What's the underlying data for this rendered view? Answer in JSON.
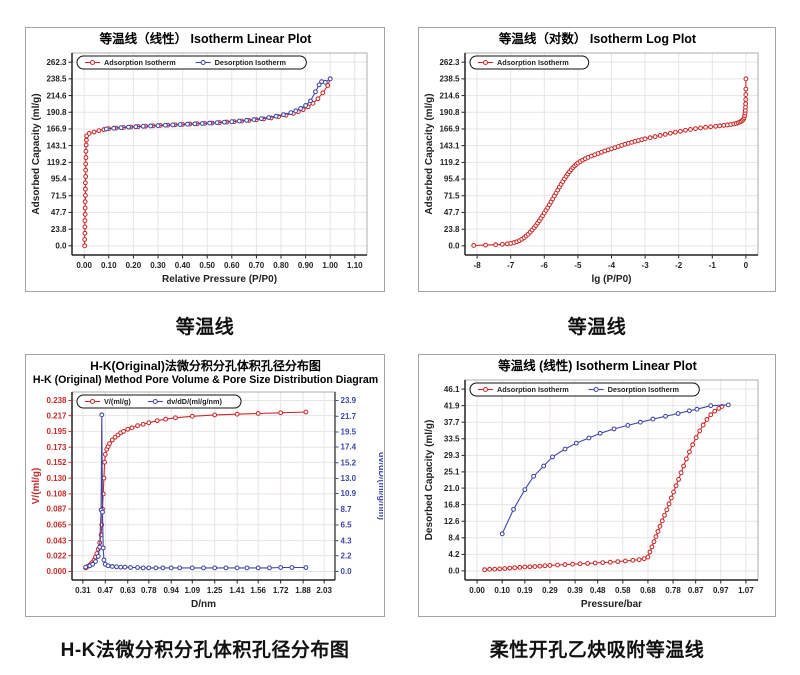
{
  "captions": [
    "等温线",
    "等温线",
    "H-K法微分积分孔体积孔径分布图",
    "柔性开孔乙炔吸附等温线"
  ],
  "colors": {
    "adsorption_red": "#c92b2b",
    "desorption_blue": "#3f46a8",
    "grid": "#eae3e3",
    "frame": "#999999",
    "axis": "#222222",
    "text": "#111111",
    "box_border": "#a3a3a3"
  },
  "chart_data": [
    {
      "type": "line",
      "title": "等温线（线性） Isotherm Linear Plot",
      "title2": null,
      "xlabel": "Relative Pressure (P/P0)",
      "ylabel": "Adsorbed Capacity (ml/g)",
      "x_ticks": [
        0.0,
        0.1,
        0.2,
        0.3,
        0.4,
        0.5,
        0.6,
        0.7,
        0.8,
        0.9,
        1.0,
        1.1
      ],
      "x_tick_labels": [
        "0.00",
        "0.10",
        "0.20",
        "0.30",
        "0.40",
        "0.50",
        "0.60",
        "0.70",
        "0.80",
        "0.90",
        "1.00",
        "1.10"
      ],
      "y_ticks": [
        0.0,
        23.8,
        47.7,
        71.5,
        95.4,
        119.2,
        143.1,
        166.9,
        190.8,
        214.6,
        238.5,
        262.3
      ],
      "y_tick_labels": [
        "0.0",
        "23.8",
        "47.7",
        "71.5",
        "95.4",
        "119.2",
        "143.1",
        "166.9",
        "190.8",
        "214.6",
        "238.5",
        "262.3"
      ],
      "legend": [
        {
          "name": "Adsorption Isotherm",
          "color": "#c92b2b"
        },
        {
          "name": "Desorption Isotherm",
          "color": "#3f46a8"
        }
      ],
      "series": [
        {
          "name": "Adsorption Isotherm",
          "color": "#c92b2b",
          "axis": "y",
          "x": [
            0.002,
            0.002,
            0.003,
            0.003,
            0.003,
            0.004,
            0.004,
            0.004,
            0.005,
            0.005,
            0.005,
            0.006,
            0.006,
            0.006,
            0.007,
            0.007,
            0.008,
            0.009,
            0.01,
            0.02,
            0.04,
            0.06,
            0.08,
            0.1,
            0.13,
            0.16,
            0.19,
            0.22,
            0.25,
            0.28,
            0.31,
            0.34,
            0.37,
            0.4,
            0.43,
            0.46,
            0.49,
            0.52,
            0.55,
            0.58,
            0.61,
            0.64,
            0.67,
            0.7,
            0.73,
            0.76,
            0.79,
            0.82,
            0.85,
            0.87,
            0.89,
            0.91,
            0.93,
            0.95,
            0.97,
            0.99,
            1.0
          ],
          "y": [
            0,
            9,
            18,
            27,
            36,
            45,
            54,
            63,
            72,
            81,
            90,
            99,
            108,
            117,
            126,
            135,
            144,
            151,
            157,
            160.5,
            162.5,
            164.5,
            166,
            167.3,
            168.2,
            169,
            169.7,
            170.3,
            170.9,
            171.4,
            171.9,
            172.4,
            172.9,
            173.4,
            173.9,
            174.4,
            174.9,
            175.4,
            176,
            176.7,
            177.4,
            178.2,
            179.1,
            180.1,
            181.3,
            182.7,
            184.4,
            186.5,
            189.2,
            191.5,
            194.5,
            198.5,
            203.5,
            210,
            218.5,
            229,
            238.5
          ]
        },
        {
          "name": "Desorption Isotherm",
          "color": "#3f46a8",
          "axis": "y",
          "x": [
            0.09,
            0.12,
            0.15,
            0.18,
            0.21,
            0.24,
            0.27,
            0.3,
            0.33,
            0.36,
            0.39,
            0.42,
            0.45,
            0.48,
            0.51,
            0.54,
            0.57,
            0.6,
            0.63,
            0.66,
            0.69,
            0.72,
            0.75,
            0.78,
            0.81,
            0.84,
            0.86,
            0.88,
            0.9,
            0.92,
            0.94,
            0.955,
            0.965,
            0.98,
            1.0
          ],
          "y": [
            167,
            168,
            168.8,
            169.5,
            170.1,
            170.7,
            171.2,
            171.7,
            172.2,
            172.7,
            173.2,
            173.7,
            174.2,
            174.7,
            175.3,
            175.9,
            176.6,
            177.4,
            178.2,
            179.2,
            180.3,
            181.6,
            183.2,
            185.1,
            187.4,
            190.2,
            192.8,
            196.2,
            200.5,
            207,
            220,
            230,
            234.5,
            233.5,
            238.5
          ]
        }
      ]
    },
    {
      "type": "line",
      "title": "等温线（对数） Isotherm Log Plot",
      "title2": null,
      "xlabel": "lg (P/P0)",
      "ylabel": "Adsorbed Capacity (ml/g)",
      "x_ticks": [
        -8,
        -7,
        -6,
        -5,
        -4,
        -3,
        -2,
        -1,
        0
      ],
      "x_tick_labels": [
        "-8",
        "-7",
        "-6",
        "-5",
        "-4",
        "-3",
        "-2",
        "-1",
        "0"
      ],
      "y_ticks": [
        0.0,
        23.8,
        47.7,
        71.5,
        95.4,
        119.2,
        143.1,
        166.9,
        190.8,
        214.6,
        238.5,
        262.3
      ],
      "y_tick_labels": [
        "0.0",
        "23.8",
        "47.7",
        "71.5",
        "95.4",
        "119.2",
        "143.1",
        "166.9",
        "190.8",
        "214.6",
        "238.5",
        "262.3"
      ],
      "legend": [
        {
          "name": "Adsorption Isotherm",
          "color": "#c92b2b"
        }
      ],
      "series": [
        {
          "name": "Adsorption Isotherm",
          "color": "#c92b2b",
          "axis": "y",
          "x": [
            -8.1,
            -7.75,
            -7.45,
            -7.25,
            -7.1,
            -7.0,
            -6.9,
            -6.82,
            -6.74,
            -6.67,
            -6.6,
            -6.54,
            -6.48,
            -6.42,
            -6.36,
            -6.3,
            -6.25,
            -6.2,
            -6.15,
            -6.1,
            -6.05,
            -6.0,
            -5.95,
            -5.9,
            -5.85,
            -5.8,
            -5.75,
            -5.7,
            -5.65,
            -5.6,
            -5.55,
            -5.5,
            -5.45,
            -5.4,
            -5.35,
            -5.3,
            -5.25,
            -5.2,
            -5.15,
            -5.1,
            -5.05,
            -5.0,
            -4.93,
            -4.86,
            -4.78,
            -4.7,
            -4.6,
            -4.5,
            -4.4,
            -4.3,
            -4.2,
            -4.1,
            -4.0,
            -3.9,
            -3.8,
            -3.7,
            -3.6,
            -3.5,
            -3.4,
            -3.3,
            -3.2,
            -3.1,
            -3.0,
            -2.85,
            -2.7,
            -2.55,
            -2.4,
            -2.25,
            -2.1,
            -1.95,
            -1.8,
            -1.65,
            -1.5,
            -1.35,
            -1.2,
            -1.05,
            -0.9,
            -0.78,
            -0.66,
            -0.55,
            -0.45,
            -0.36,
            -0.29,
            -0.23,
            -0.18,
            -0.14,
            -0.1,
            -0.07,
            -0.05,
            -0.035,
            -0.025,
            -0.018,
            -0.012,
            -0.008,
            -0.005,
            -0.003,
            -0.001,
            0
          ],
          "y": [
            0.5,
            1,
            1.6,
            2.2,
            2.8,
            3.5,
            4.6,
            5.8,
            7.4,
            9.3,
            11.6,
            14,
            16.6,
            19.5,
            22.6,
            26,
            29,
            32.4,
            35.8,
            39.4,
            43,
            46.8,
            50.6,
            54.6,
            58.6,
            62.8,
            67,
            71.2,
            75.4,
            79.6,
            83.8,
            87.8,
            91.8,
            95.6,
            99.2,
            102.6,
            105.8,
            108.8,
            111.6,
            114,
            116.2,
            118.2,
            120.4,
            122.4,
            124.4,
            126.2,
            128.2,
            130,
            131.8,
            133.6,
            135.4,
            137,
            138.6,
            140.2,
            141.8,
            143.4,
            145,
            146.4,
            147.8,
            149.2,
            150.4,
            151.6,
            152.8,
            154.4,
            156,
            157.6,
            159.2,
            160.8,
            162.2,
            163.6,
            165,
            166.2,
            167.4,
            168.4,
            169.2,
            170,
            170.8,
            171.4,
            172,
            172.6,
            173.3,
            174,
            174.8,
            175.7,
            176.7,
            177.8,
            179.2,
            181,
            183.2,
            186,
            189.5,
            193.5,
            198,
            203,
            209,
            216,
            224,
            238.5
          ]
        }
      ]
    },
    {
      "type": "line",
      "title": "H-K(Original)法微分积分孔体积孔径分布图",
      "title2": "H-K (Original) Method Pore Volume & Pore Size Distribution Diagram",
      "xlabel": "D/nm",
      "ylabel": "V/(ml/g)",
      "ylabel_color": "#c92b2b",
      "y2label": "dv/dD/(ml/g/nm)",
      "y2label_color": "#3f46a8",
      "x_ticks": [
        0.31,
        0.47,
        0.63,
        0.78,
        0.94,
        1.09,
        1.25,
        1.41,
        1.56,
        1.72,
        1.88,
        2.03
      ],
      "x_tick_labels": [
        "0.31",
        "0.47",
        "0.63",
        "0.78",
        "0.94",
        "1.09",
        "1.25",
        "1.41",
        "1.56",
        "1.72",
        "1.88",
        "2.03"
      ],
      "y_ticks": [
        0.0,
        0.022,
        0.043,
        0.065,
        0.087,
        0.108,
        0.13,
        0.152,
        0.173,
        0.195,
        0.217,
        0.238
      ],
      "y_tick_labels": [
        "0.000",
        "0.022",
        "0.043",
        "0.065",
        "0.087",
        "0.108",
        "0.130",
        "0.152",
        "0.173",
        "0.195",
        "0.217",
        "0.238"
      ],
      "y_tick_color": "#c92b2b",
      "y2_ticks": [
        0.0,
        2.2,
        4.3,
        6.5,
        8.7,
        10.9,
        13.0,
        15.2,
        17.4,
        19.5,
        21.7,
        23.9
      ],
      "y2_tick_labels": [
        "0.0",
        "2.2",
        "4.3",
        "6.5",
        "8.7",
        "10.9",
        "13.0",
        "15.2",
        "17.4",
        "19.5",
        "21.7",
        "23.9"
      ],
      "y2_tick_color": "#3f46a8",
      "legend": [
        {
          "name": "V/(ml/g)",
          "color": "#c92b2b"
        },
        {
          "name": "dv/dD/(ml/g/nm)",
          "color": "#3f46a8"
        }
      ],
      "series": [
        {
          "name": "V/(ml/g)",
          "color": "#c92b2b",
          "axis": "y",
          "x": [
            0.33,
            0.345,
            0.36,
            0.37,
            0.38,
            0.39,
            0.4,
            0.41,
            0.42,
            0.43,
            0.44,
            0.445,
            0.45,
            0.455,
            0.46,
            0.465,
            0.47,
            0.48,
            0.49,
            0.5,
            0.52,
            0.54,
            0.56,
            0.58,
            0.6,
            0.63,
            0.66,
            0.7,
            0.74,
            0.78,
            0.84,
            0.9,
            0.97,
            1.09,
            1.25,
            1.41,
            1.56,
            1.72,
            1.9
          ],
          "y": [
            0.005,
            0.007,
            0.009,
            0.011,
            0.013,
            0.016,
            0.02,
            0.025,
            0.031,
            0.04,
            0.051,
            0.065,
            0.087,
            0.108,
            0.13,
            0.152,
            0.163,
            0.17,
            0.174,
            0.178,
            0.183,
            0.187,
            0.19,
            0.193,
            0.195,
            0.198,
            0.2,
            0.203,
            0.205,
            0.207,
            0.21,
            0.212,
            0.214,
            0.216,
            0.218,
            0.219,
            0.22,
            0.221,
            0.222
          ]
        },
        {
          "name": "dv/dD/(ml/g/nm)",
          "color": "#3f46a8",
          "axis": "y2",
          "x": [
            0.33,
            0.36,
            0.38,
            0.4,
            0.42,
            0.43,
            0.44,
            0.445,
            0.45,
            0.455,
            0.46,
            0.47,
            0.49,
            0.52,
            0.55,
            0.58,
            0.61,
            0.65,
            0.7,
            0.74,
            0.78,
            0.83,
            0.88,
            0.94,
            1.0,
            1.09,
            1.17,
            1.25,
            1.33,
            1.41,
            1.48,
            1.56,
            1.64,
            1.72,
            1.8,
            1.9
          ],
          "y": [
            0.6,
            0.8,
            1.0,
            1.4,
            2.1,
            3.4,
            8.6,
            21.9,
            8.3,
            3.3,
            1.6,
            1.0,
            0.8,
            0.7,
            0.65,
            0.6,
            0.6,
            0.55,
            0.55,
            0.5,
            0.5,
            0.5,
            0.5,
            0.5,
            0.5,
            0.5,
            0.5,
            0.5,
            0.5,
            0.5,
            0.5,
            0.5,
            0.5,
            0.55,
            0.55,
            0.55
          ]
        }
      ]
    },
    {
      "type": "line",
      "title": "等温线 (线性)  Isotherm Linear Plot",
      "title2": null,
      "xlabel": "Pressure/bar",
      "ylabel": "Desorbed Capacity (ml/g)",
      "x_ticks": [
        0.0,
        0.1,
        0.19,
        0.29,
        0.39,
        0.48,
        0.58,
        0.68,
        0.78,
        0.87,
        0.97,
        1.07
      ],
      "x_tick_labels": [
        "0.00",
        "0.10",
        "0.19",
        "0.29",
        "0.39",
        "0.48",
        "0.58",
        "0.68",
        "0.78",
        "0.87",
        "0.97",
        "1.07"
      ],
      "y_ticks": [
        0.0,
        4.2,
        8.4,
        12.6,
        16.8,
        21.0,
        25.1,
        29.3,
        33.5,
        37.7,
        41.9,
        46.1
      ],
      "y_tick_labels": [
        "0.0",
        "4.2",
        "8.4",
        "12.6",
        "16.8",
        "21.0",
        "25.1",
        "29.3",
        "33.5",
        "37.7",
        "41.9",
        "46.1"
      ],
      "legend": [
        {
          "name": "Adsorption Isotherm",
          "color": "#c92b2b"
        },
        {
          "name": "Desorption Isotherm",
          "color": "#3f46a8"
        }
      ],
      "series": [
        {
          "name": "Adsorption Isotherm",
          "color": "#c92b2b",
          "axis": "y",
          "x": [
            0.03,
            0.05,
            0.07,
            0.09,
            0.11,
            0.13,
            0.15,
            0.17,
            0.19,
            0.21,
            0.23,
            0.25,
            0.27,
            0.29,
            0.32,
            0.35,
            0.38,
            0.41,
            0.44,
            0.47,
            0.5,
            0.53,
            0.56,
            0.59,
            0.62,
            0.645,
            0.665,
            0.68,
            0.688,
            0.696,
            0.704,
            0.712,
            0.72,
            0.728,
            0.737,
            0.746,
            0.755,
            0.764,
            0.773,
            0.782,
            0.792,
            0.802,
            0.812,
            0.822,
            0.833,
            0.845,
            0.858,
            0.872,
            0.886,
            0.9,
            0.915,
            0.93,
            0.946,
            0.962,
            0.975
          ],
          "y": [
            0.3,
            0.4,
            0.45,
            0.5,
            0.6,
            0.7,
            0.8,
            0.9,
            1.0,
            1.05,
            1.1,
            1.2,
            1.3,
            1.4,
            1.5,
            1.6,
            1.7,
            1.8,
            1.9,
            2.0,
            2.1,
            2.2,
            2.35,
            2.5,
            2.7,
            2.85,
            3.1,
            3.5,
            4.8,
            6.1,
            7.4,
            8.7,
            10.0,
            11.3,
            12.7,
            14.1,
            15.5,
            17.0,
            18.5,
            20.0,
            21.6,
            23.2,
            24.9,
            26.6,
            28.4,
            30.2,
            32.0,
            33.8,
            35.5,
            37.0,
            38.4,
            39.6,
            40.5,
            41.2,
            41.7
          ]
        },
        {
          "name": "Desorption Isotherm",
          "color": "#3f46a8",
          "axis": "y",
          "x": [
            0.1,
            0.145,
            0.19,
            0.225,
            0.265,
            0.3,
            0.35,
            0.395,
            0.445,
            0.49,
            0.545,
            0.6,
            0.65,
            0.7,
            0.75,
            0.8,
            0.845,
            0.875,
            0.93,
            1.0
          ],
          "y": [
            9.4,
            15.6,
            20.6,
            24.0,
            26.6,
            28.9,
            30.9,
            32.4,
            33.7,
            34.9,
            36.0,
            36.9,
            37.7,
            38.5,
            39.2,
            39.9,
            40.6,
            41.0,
            41.9,
            42.1
          ]
        }
      ]
    }
  ]
}
